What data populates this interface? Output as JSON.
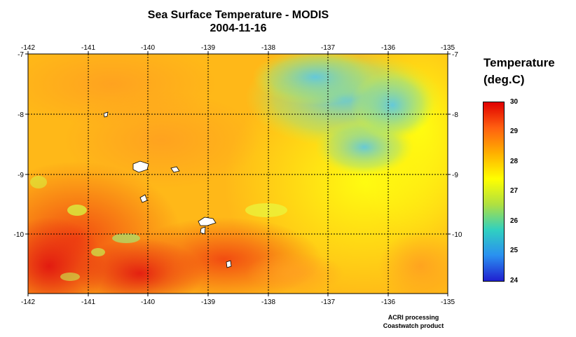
{
  "title": "Sea Surface Temperature - MODIS",
  "date": "2004-11-16",
  "legend": {
    "title_line1": "Temperature",
    "title_line2": "(deg.C)",
    "ticks": [
      "30",
      "29",
      "28",
      "27",
      "26",
      "25",
      "24"
    ],
    "colors": [
      "#2020d0",
      "#2a90f0",
      "#30d0c0",
      "#b0e040",
      "#ffff00",
      "#ffb000",
      "#ff6010",
      "#e00000"
    ]
  },
  "axes": {
    "lon_labels": [
      "-142",
      "-141",
      "-140",
      "-139",
      "-138",
      "-137",
      "-136",
      "-135"
    ],
    "lat_labels": [
      "-7",
      "-8",
      "-9",
      "-10"
    ]
  },
  "credits": {
    "line1": "ACRI processing",
    "line2": "Coastwatch product"
  },
  "chart_data": {
    "type": "heatmap",
    "title": "Sea Surface Temperature - MODIS",
    "subtitle": "2004-11-16",
    "x_range": [
      -142,
      -135
    ],
    "y_range": [
      -11,
      -7
    ],
    "colorbar_range": [
      24,
      30
    ],
    "grid": true
  }
}
